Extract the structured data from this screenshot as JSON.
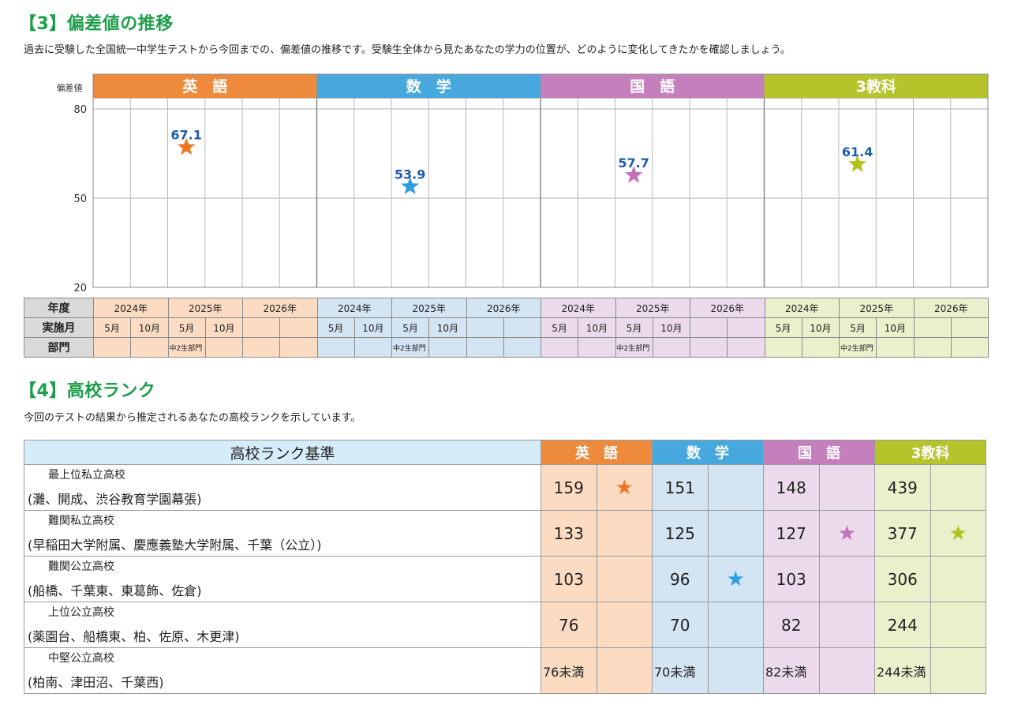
{
  "section3": {
    "title": "【3】偏差値の推移",
    "description": "過去に受験した全国統一中学生テストから今回までの、偏差値の推移です。受験生全体から見たあなたの学力の位置が、どのように変化してきたかを確認しましょう。"
  },
  "section4": {
    "title": "【4】高校ランク",
    "description": "今回のテストの結果から推定されるあなたの高校ランクを示しています。"
  },
  "chart_data": {
    "type": "scatter",
    "ylabel": "偏差値",
    "y_ticks": [
      80,
      50,
      20
    ],
    "ylim": [
      20,
      80
    ],
    "panels": [
      {
        "name": "英　語",
        "color": "#ed8a3b",
        "star_color": "#ee7623",
        "point": {
          "year": "2025年",
          "month": "5月",
          "value": 67.1
        }
      },
      {
        "name": "数　学",
        "color": "#47a8de",
        "star_color": "#2d9fe0",
        "point": {
          "year": "2025年",
          "month": "5月",
          "value": 53.9
        }
      },
      {
        "name": "国　語",
        "color": "#c47fbc",
        "star_color": "#c272b9",
        "point": {
          "year": "2025年",
          "month": "5月",
          "value": 57.7
        }
      },
      {
        "name": "3教科",
        "color": "#b6c42c",
        "star_color": "#b4c21f",
        "point": {
          "year": "2025年",
          "month": "5月",
          "value": 61.4
        }
      }
    ],
    "value_label_color": "#1f5ba8"
  },
  "bottom_table": {
    "row_labels": [
      "年度",
      "実施月",
      "部門"
    ],
    "years": [
      "2024年",
      "2025年",
      "2026年"
    ],
    "months": [
      "5月",
      "10月",
      "5月",
      "10月",
      "",
      ""
    ],
    "division": [
      "",
      "",
      "中2生部門",
      "",
      "",
      ""
    ],
    "panel_bg": [
      "#fbdcc2",
      "#d3e4f3",
      "#ebdaec",
      "#eaf0cb"
    ]
  },
  "rank_table": {
    "criteria_header": "高校ランク基準",
    "subjects": [
      {
        "name": "英　語",
        "color": "#ed8a3b",
        "bg": "#fbdcc2",
        "star_color": "#ee7623"
      },
      {
        "name": "数　学",
        "color": "#47a8de",
        "bg": "#d3e4f3",
        "star_color": "#2d9fe0"
      },
      {
        "name": "国　語",
        "color": "#c47fbc",
        "bg": "#ebdaec",
        "star_color": "#c272b9"
      },
      {
        "name": "3教科",
        "color": "#b6c42c",
        "bg": "#eaf0cb",
        "star_color": "#b4c21f"
      }
    ],
    "rows": [
      {
        "rank": "最上位私立高校",
        "schools": "(灘、開成、渋谷教育学園幕張)",
        "values": [
          "159",
          "151",
          "148",
          "439"
        ],
        "stars": [
          "★",
          "",
          "",
          ""
        ]
      },
      {
        "rank": "難関私立高校",
        "schools": "(早稲田大学附属、慶應義塾大学附属、千葉（公立）)",
        "values": [
          "133",
          "125",
          "127",
          "377"
        ],
        "stars": [
          "",
          "",
          "★",
          "★"
        ]
      },
      {
        "rank": "難関公立高校",
        "schools": "(船橋、千葉東、東葛飾、佐倉)",
        "values": [
          "103",
          "96",
          "103",
          "306"
        ],
        "stars": [
          "",
          "★",
          "",
          ""
        ]
      },
      {
        "rank": "上位公立高校",
        "schools": "(薬園台、船橋東、柏、佐原、木更津)",
        "values": [
          "76",
          "70",
          "82",
          "244"
        ],
        "stars": [
          "",
          "",
          "",
          ""
        ]
      },
      {
        "rank": "中堅公立高校",
        "schools": "(柏南、津田沼、千葉西)",
        "values": [
          "76未満",
          "70未満",
          "82未満",
          "244未満"
        ],
        "stars": [
          "",
          "",
          "",
          ""
        ]
      }
    ]
  }
}
